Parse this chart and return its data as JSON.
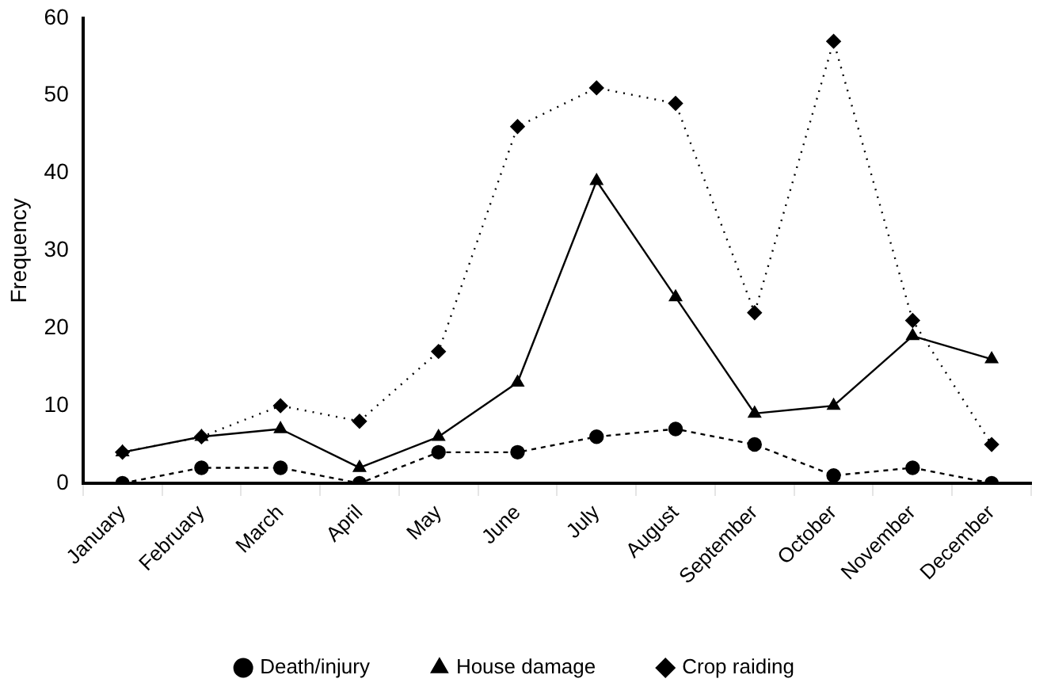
{
  "chart_data": {
    "type": "line",
    "ylabel": "Frequency",
    "categories": [
      "January",
      "February",
      "March",
      "April",
      "May",
      "June",
      "July",
      "August",
      "September",
      "October",
      "November",
      "December"
    ],
    "series": [
      {
        "name": "Crop raiding",
        "color": "#000000",
        "marker": "diamond",
        "line_style": "dotted",
        "values": [
          4,
          6,
          10,
          8,
          17,
          46,
          51,
          49,
          22,
          57,
          21,
          5
        ]
      },
      {
        "name": "House damage",
        "color": "#000000",
        "marker": "triangle",
        "line_style": "solid",
        "values": [
          4,
          6,
          7,
          2,
          6,
          13,
          39,
          24,
          9,
          10,
          19,
          16
        ]
      },
      {
        "name": "Death/injury",
        "color": "#000000",
        "marker": "circle",
        "line_style": "dashed",
        "values": [
          0,
          2,
          2,
          0,
          4,
          4,
          6,
          7,
          5,
          1,
          2,
          0
        ]
      }
    ],
    "ylim": [
      0,
      60
    ],
    "yticks": [
      0,
      10,
      20,
      30,
      40,
      50,
      60
    ],
    "grid": false,
    "legend": "bottom"
  }
}
